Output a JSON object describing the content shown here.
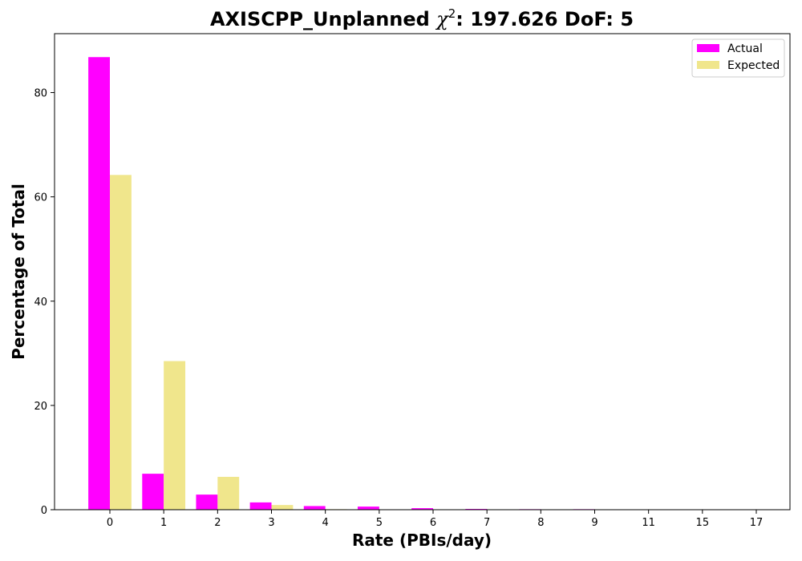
{
  "chart_data": {
    "type": "bar",
    "title": {
      "prefix": "AXISCPP_Unplanned ",
      "chi_symbol": "χ",
      "chi_exponent": "2",
      "suffix": ": 197.626 DoF: 5"
    },
    "xlabel": "Rate (PBIs/day)",
    "ylabel": "Percentage of Total",
    "categories": [
      "0",
      "1",
      "2",
      "3",
      "4",
      "5",
      "6",
      "7",
      "8",
      "9",
      "11",
      "15",
      "17"
    ],
    "series": [
      {
        "name": "Actual",
        "color": "#ff00ff",
        "values": [
          86.8,
          6.9,
          2.9,
          1.4,
          0.7,
          0.6,
          0.3,
          0.15,
          0.1,
          0.1,
          0.05,
          0.02,
          0.02
        ]
      },
      {
        "name": "Expected",
        "color": "#f0e68c",
        "values": [
          64.2,
          28.5,
          6.3,
          0.9,
          0.1,
          0.01,
          0,
          0,
          0,
          0,
          0,
          0,
          0
        ]
      }
    ],
    "ylim": [
      0,
      91.3
    ],
    "yticks": [
      0,
      20,
      40,
      60,
      80
    ],
    "grid": false,
    "legend_position": "top-right"
  }
}
